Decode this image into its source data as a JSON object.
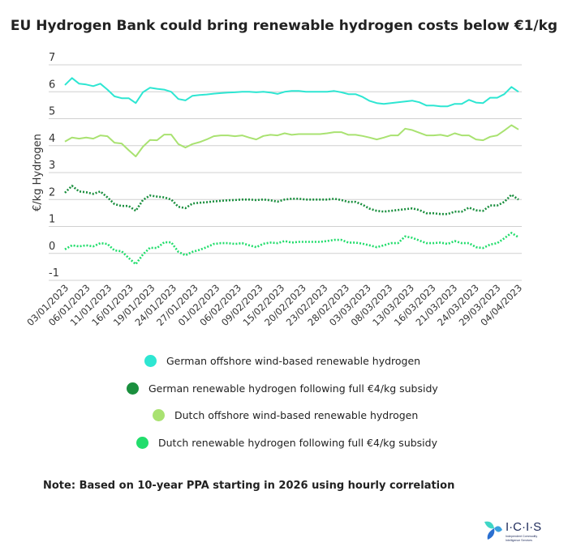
{
  "chart_data": {
    "type": "line",
    "title": "EU Hydrogen Bank could bring renewable hydrogen costs below €1/kg",
    "ylabel": "€/kg Hydrogen",
    "xlabel": "",
    "ylim": [
      -1,
      7
    ],
    "yticks": [
      7,
      6,
      5,
      4,
      3,
      2,
      1,
      0,
      -1
    ],
    "grid": true,
    "legend_position": "bottom",
    "x_tick_labels": [
      "03/01/2023",
      "06/01/2023",
      "11/01/2023",
      "16/01/2023",
      "19/01/2023",
      "24/01/2023",
      "27/01/2023",
      "01/02/2023",
      "06/02/2023",
      "09/02/2023",
      "15/02/2023",
      "20/02/2023",
      "23/02/2023",
      "28/02/2023",
      "03/03/2023",
      "08/03/2023",
      "13/03/2023",
      "16/03/2023",
      "21/03/2023",
      "24/03/2023",
      "29/03/2023",
      "04/04/2023"
    ],
    "series": [
      {
        "name": "German offshore wind-based renewable hydrogen",
        "color": "#2ee6d2",
        "style": "solid",
        "values": [
          6.25,
          6.51,
          6.3,
          6.27,
          6.21,
          6.3,
          6.08,
          5.83,
          5.76,
          5.76,
          5.58,
          5.98,
          6.15,
          6.11,
          6.08,
          6.0,
          5.73,
          5.68,
          5.85,
          5.88,
          5.9,
          5.93,
          5.95,
          5.97,
          5.98,
          6.0,
          6.0,
          5.98,
          6.0,
          5.97,
          5.92,
          6.0,
          6.03,
          6.03,
          6.0,
          6.0,
          6.0,
          6.0,
          6.03,
          5.98,
          5.91,
          5.91,
          5.81,
          5.66,
          5.58,
          5.55,
          5.58,
          5.61,
          5.64,
          5.67,
          5.61,
          5.49,
          5.49,
          5.46,
          5.46,
          5.55,
          5.55,
          5.7,
          5.6,
          5.58,
          5.78,
          5.78,
          5.91,
          6.18,
          6.0
        ]
      },
      {
        "name": "German renewable hydrogen following full €4/kg subsidy",
        "color": "#1a8f3e",
        "style": "dotted",
        "values": [
          2.25,
          2.51,
          2.3,
          2.27,
          2.21,
          2.3,
          2.08,
          1.83,
          1.76,
          1.76,
          1.58,
          1.98,
          2.15,
          2.11,
          2.08,
          2.0,
          1.73,
          1.68,
          1.85,
          1.88,
          1.9,
          1.93,
          1.95,
          1.97,
          1.98,
          2.0,
          2.0,
          1.98,
          2.0,
          1.97,
          1.92,
          2.0,
          2.03,
          2.03,
          2.0,
          2.0,
          2.0,
          2.0,
          2.03,
          1.98,
          1.91,
          1.91,
          1.81,
          1.66,
          1.58,
          1.55,
          1.58,
          1.61,
          1.64,
          1.67,
          1.61,
          1.49,
          1.49,
          1.46,
          1.46,
          1.55,
          1.55,
          1.7,
          1.6,
          1.58,
          1.78,
          1.78,
          1.91,
          2.18,
          2.0
        ]
      },
      {
        "name": "Dutch offshore wind-based renewable hydrogen",
        "color": "#a9e271",
        "style": "solid",
        "values": [
          4.15,
          4.3,
          4.26,
          4.3,
          4.26,
          4.38,
          4.35,
          4.11,
          4.08,
          3.83,
          3.6,
          3.96,
          4.21,
          4.2,
          4.41,
          4.41,
          4.06,
          3.93,
          4.06,
          4.13,
          4.23,
          4.35,
          4.38,
          4.38,
          4.35,
          4.38,
          4.3,
          4.23,
          4.36,
          4.4,
          4.38,
          4.46,
          4.4,
          4.43,
          4.43,
          4.43,
          4.43,
          4.46,
          4.5,
          4.5,
          4.4,
          4.4,
          4.36,
          4.3,
          4.23,
          4.3,
          4.38,
          4.38,
          4.63,
          4.58,
          4.48,
          4.38,
          4.38,
          4.4,
          4.35,
          4.46,
          4.38,
          4.38,
          4.23,
          4.2,
          4.33,
          4.38,
          4.56,
          4.76,
          4.6
        ]
      },
      {
        "name": "Dutch renewable hydrogen following full €4/kg subsidy",
        "color": "#22dd6c",
        "style": "dotted",
        "values": [
          0.15,
          0.3,
          0.26,
          0.3,
          0.26,
          0.38,
          0.35,
          0.11,
          0.08,
          -0.17,
          -0.4,
          -0.04,
          0.21,
          0.2,
          0.41,
          0.41,
          0.06,
          -0.07,
          0.06,
          0.13,
          0.23,
          0.35,
          0.38,
          0.38,
          0.35,
          0.38,
          0.3,
          0.23,
          0.36,
          0.4,
          0.38,
          0.46,
          0.4,
          0.43,
          0.43,
          0.43,
          0.43,
          0.46,
          0.5,
          0.5,
          0.4,
          0.4,
          0.36,
          0.3,
          0.23,
          0.3,
          0.38,
          0.38,
          0.63,
          0.58,
          0.48,
          0.38,
          0.38,
          0.4,
          0.35,
          0.46,
          0.38,
          0.38,
          0.23,
          0.2,
          0.33,
          0.38,
          0.56,
          0.76,
          0.6
        ]
      }
    ]
  },
  "note": "Note: Based on 10-year PPA starting in 2026 using hourly correlation",
  "logo": {
    "text": "I·C·I·S",
    "tagline": "Independent Commodity Intelligence Services"
  }
}
